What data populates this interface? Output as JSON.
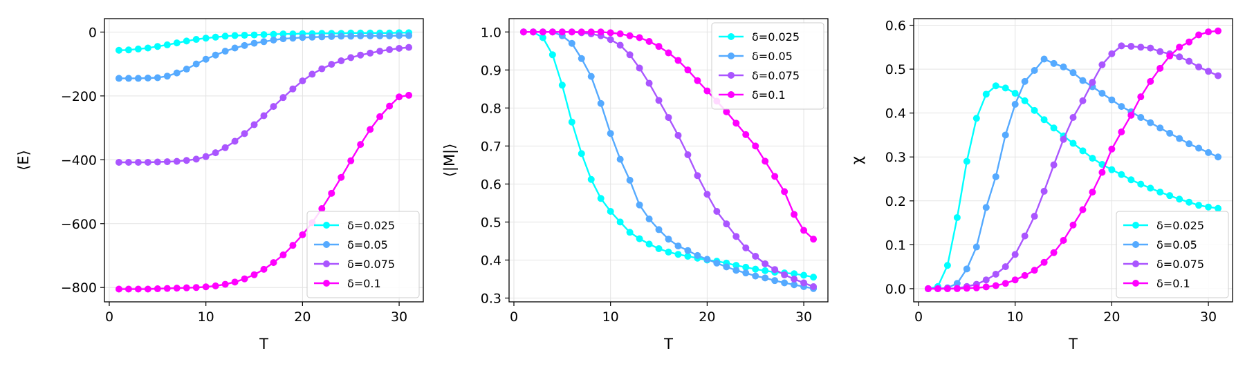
{
  "chart_data": [
    {
      "type": "line",
      "xlabel": "T",
      "ylabel": "⟨E⟩",
      "xlim": [
        -0.5,
        32.5
      ],
      "ylim": [
        -845,
        42
      ],
      "xticks": [
        0,
        10,
        20,
        30
      ],
      "yticks": [
        0,
        -200,
        -400,
        -600,
        -800
      ],
      "ytick_labels": [
        "0",
        "−200",
        "−400",
        "−600",
        "−800"
      ],
      "grid": true,
      "legend_position": "lower-right",
      "x": [
        1,
        2,
        3,
        4,
        5,
        6,
        7,
        8,
        9,
        10,
        11,
        12,
        13,
        14,
        15,
        16,
        17,
        18,
        19,
        20,
        21,
        22,
        23,
        24,
        25,
        26,
        27,
        28,
        29,
        30,
        31
      ],
      "series": [
        {
          "name": "δ=0.025",
          "color": "#00ffff",
          "values": [
            -57,
            -56,
            -53,
            -50,
            -45,
            -40,
            -34,
            -28,
            -23,
            -19,
            -16,
            -13,
            -11,
            -10,
            -9,
            -8,
            -7,
            -6,
            -6,
            -5,
            -5,
            -4,
            -4,
            -4,
            -3,
            -3,
            -3,
            -3,
            -3,
            -2,
            -2
          ]
        },
        {
          "name": "δ=0.05",
          "color": "#55aaff",
          "values": [
            -145,
            -145,
            -145,
            -144,
            -143,
            -138,
            -128,
            -116,
            -100,
            -85,
            -72,
            -60,
            -50,
            -42,
            -35,
            -30,
            -25,
            -21,
            -19,
            -17,
            -16,
            -15,
            -14,
            -13,
            -13,
            -12,
            -12,
            -12,
            -12,
            -11,
            -11
          ]
        },
        {
          "name": "δ=0.075",
          "color": "#aa55ff",
          "values": [
            -408,
            -408,
            -408,
            -408,
            -407,
            -406,
            -405,
            -402,
            -398,
            -390,
            -378,
            -362,
            -342,
            -318,
            -290,
            -262,
            -233,
            -205,
            -178,
            -153,
            -132,
            -115,
            -101,
            -90,
            -80,
            -72,
            -66,
            -60,
            -55,
            -51,
            -48
          ]
        },
        {
          "name": "δ=0.1",
          "color": "#ff00ff",
          "values": [
            -805,
            -805,
            -805,
            -805,
            -804,
            -803,
            -802,
            -801,
            -800,
            -798,
            -795,
            -790,
            -783,
            -773,
            -760,
            -743,
            -722,
            -698,
            -668,
            -635,
            -597,
            -553,
            -505,
            -455,
            -403,
            -352,
            -305,
            -265,
            -232,
            -203,
            -198
          ]
        }
      ]
    },
    {
      "type": "line",
      "xlabel": "T",
      "ylabel": "⟨|M|⟩",
      "xlim": [
        -0.5,
        32.5
      ],
      "ylim": [
        0.29,
        1.035
      ],
      "xticks": [
        0,
        10,
        20,
        30
      ],
      "yticks": [
        0.3,
        0.4,
        0.5,
        0.6,
        0.7,
        0.8,
        0.9,
        1.0
      ],
      "ytick_labels": [
        "0.3",
        "0.4",
        "0.5",
        "0.6",
        "0.7",
        "0.8",
        "0.9",
        "1.0"
      ],
      "grid": true,
      "legend_position": "top-right",
      "x": [
        1,
        2,
        3,
        4,
        5,
        6,
        7,
        8,
        9,
        10,
        11,
        12,
        13,
        14,
        15,
        16,
        17,
        18,
        19,
        20,
        21,
        22,
        23,
        24,
        25,
        26,
        27,
        28,
        29,
        30,
        31
      ],
      "series": [
        {
          "name": "δ=0.025",
          "color": "#00ffff",
          "values": [
            1.0,
            1.0,
            0.985,
            0.94,
            0.86,
            0.763,
            0.68,
            0.612,
            0.562,
            0.528,
            0.5,
            0.473,
            0.456,
            0.442,
            0.43,
            0.421,
            0.415,
            0.41,
            0.405,
            0.4,
            0.397,
            0.392,
            0.386,
            0.381,
            0.376,
            0.372,
            0.368,
            0.366,
            0.364,
            0.36,
            0.355
          ]
        },
        {
          "name": "δ=0.05",
          "color": "#55aaff",
          "values": [
            1.0,
            1.0,
            1.0,
            1.0,
            0.99,
            0.97,
            0.93,
            0.883,
            0.812,
            0.733,
            0.665,
            0.61,
            0.545,
            0.508,
            0.48,
            0.455,
            0.437,
            0.425,
            0.412,
            0.402,
            0.392,
            0.382,
            0.373,
            0.366,
            0.358,
            0.353,
            0.346,
            0.34,
            0.335,
            0.33,
            0.325
          ]
        },
        {
          "name": "δ=0.075",
          "color": "#aa55ff",
          "values": [
            1.0,
            1.0,
            1.0,
            1.0,
            1.0,
            1.0,
            0.998,
            0.995,
            0.99,
            0.98,
            0.965,
            0.94,
            0.905,
            0.865,
            0.82,
            0.775,
            0.728,
            0.677,
            0.622,
            0.573,
            0.528,
            0.495,
            0.462,
            0.432,
            0.41,
            0.39,
            0.375,
            0.361,
            0.35,
            0.34,
            0.33
          ]
        },
        {
          "name": "δ=0.1",
          "color": "#ff00ff",
          "values": [
            1.0,
            1.0,
            1.0,
            1.0,
            1.0,
            1.0,
            1.0,
            1.0,
            1.0,
            0.998,
            0.995,
            0.99,
            0.985,
            0.975,
            0.962,
            0.945,
            0.925,
            0.9,
            0.872,
            0.845,
            0.818,
            0.79,
            0.76,
            0.73,
            0.7,
            0.66,
            0.62,
            0.58,
            0.52,
            0.478,
            0.455
          ]
        }
      ]
    },
    {
      "type": "line",
      "xlabel": "T",
      "ylabel": "χ",
      "xlim": [
        -0.5,
        32.5
      ],
      "ylim": [
        -0.03,
        0.615
      ],
      "xticks": [
        0,
        10,
        20,
        30
      ],
      "yticks": [
        0.0,
        0.1,
        0.2,
        0.3,
        0.4,
        0.5,
        0.6
      ],
      "ytick_labels": [
        "0.0",
        "0.1",
        "0.2",
        "0.3",
        "0.4",
        "0.5",
        "0.6"
      ],
      "grid": true,
      "legend_position": "lower-right",
      "x": [
        1,
        2,
        3,
        4,
        5,
        6,
        7,
        8,
        9,
        10,
        11,
        12,
        13,
        14,
        15,
        16,
        17,
        18,
        19,
        20,
        21,
        22,
        23,
        24,
        25,
        26,
        27,
        28,
        29,
        30,
        31
      ],
      "series": [
        {
          "name": "δ=0.025",
          "color": "#00ffff",
          "values": [
            0.0,
            0.005,
            0.053,
            0.162,
            0.29,
            0.388,
            0.443,
            0.462,
            0.457,
            0.445,
            0.428,
            0.406,
            0.385,
            0.366,
            0.348,
            0.331,
            0.314,
            0.297,
            0.283,
            0.271,
            0.26,
            0.248,
            0.238,
            0.229,
            0.22,
            0.212,
            0.204,
            0.197,
            0.19,
            0.186,
            0.183
          ]
        },
        {
          "name": "δ=0.05",
          "color": "#55aaff",
          "values": [
            0.0,
            0.0,
            0.002,
            0.012,
            0.045,
            0.095,
            0.185,
            0.255,
            0.35,
            0.42,
            0.472,
            0.497,
            0.523,
            0.513,
            0.505,
            0.492,
            0.474,
            0.46,
            0.445,
            0.43,
            0.415,
            0.403,
            0.39,
            0.378,
            0.366,
            0.354,
            0.342,
            0.33,
            0.32,
            0.31,
            0.3
          ]
        },
        {
          "name": "δ=0.075",
          "color": "#aa55ff",
          "values": [
            0.0,
            0.0,
            0.0,
            0.001,
            0.005,
            0.01,
            0.02,
            0.033,
            0.05,
            0.078,
            0.12,
            0.165,
            0.222,
            0.282,
            0.34,
            0.39,
            0.428,
            0.47,
            0.51,
            0.535,
            0.553,
            0.552,
            0.55,
            0.548,
            0.54,
            0.535,
            0.528,
            0.518,
            0.505,
            0.495,
            0.485
          ]
        },
        {
          "name": "δ=0.1",
          "color": "#ff00ff",
          "values": [
            0.0,
            0.0,
            0.0,
            0.0,
            0.001,
            0.002,
            0.004,
            0.007,
            0.012,
            0.02,
            0.03,
            0.042,
            0.06,
            0.082,
            0.11,
            0.145,
            0.18,
            0.22,
            0.265,
            0.318,
            0.357,
            0.395,
            0.437,
            0.472,
            0.502,
            0.53,
            0.55,
            0.562,
            0.578,
            0.585,
            0.587
          ]
        }
      ]
    }
  ]
}
